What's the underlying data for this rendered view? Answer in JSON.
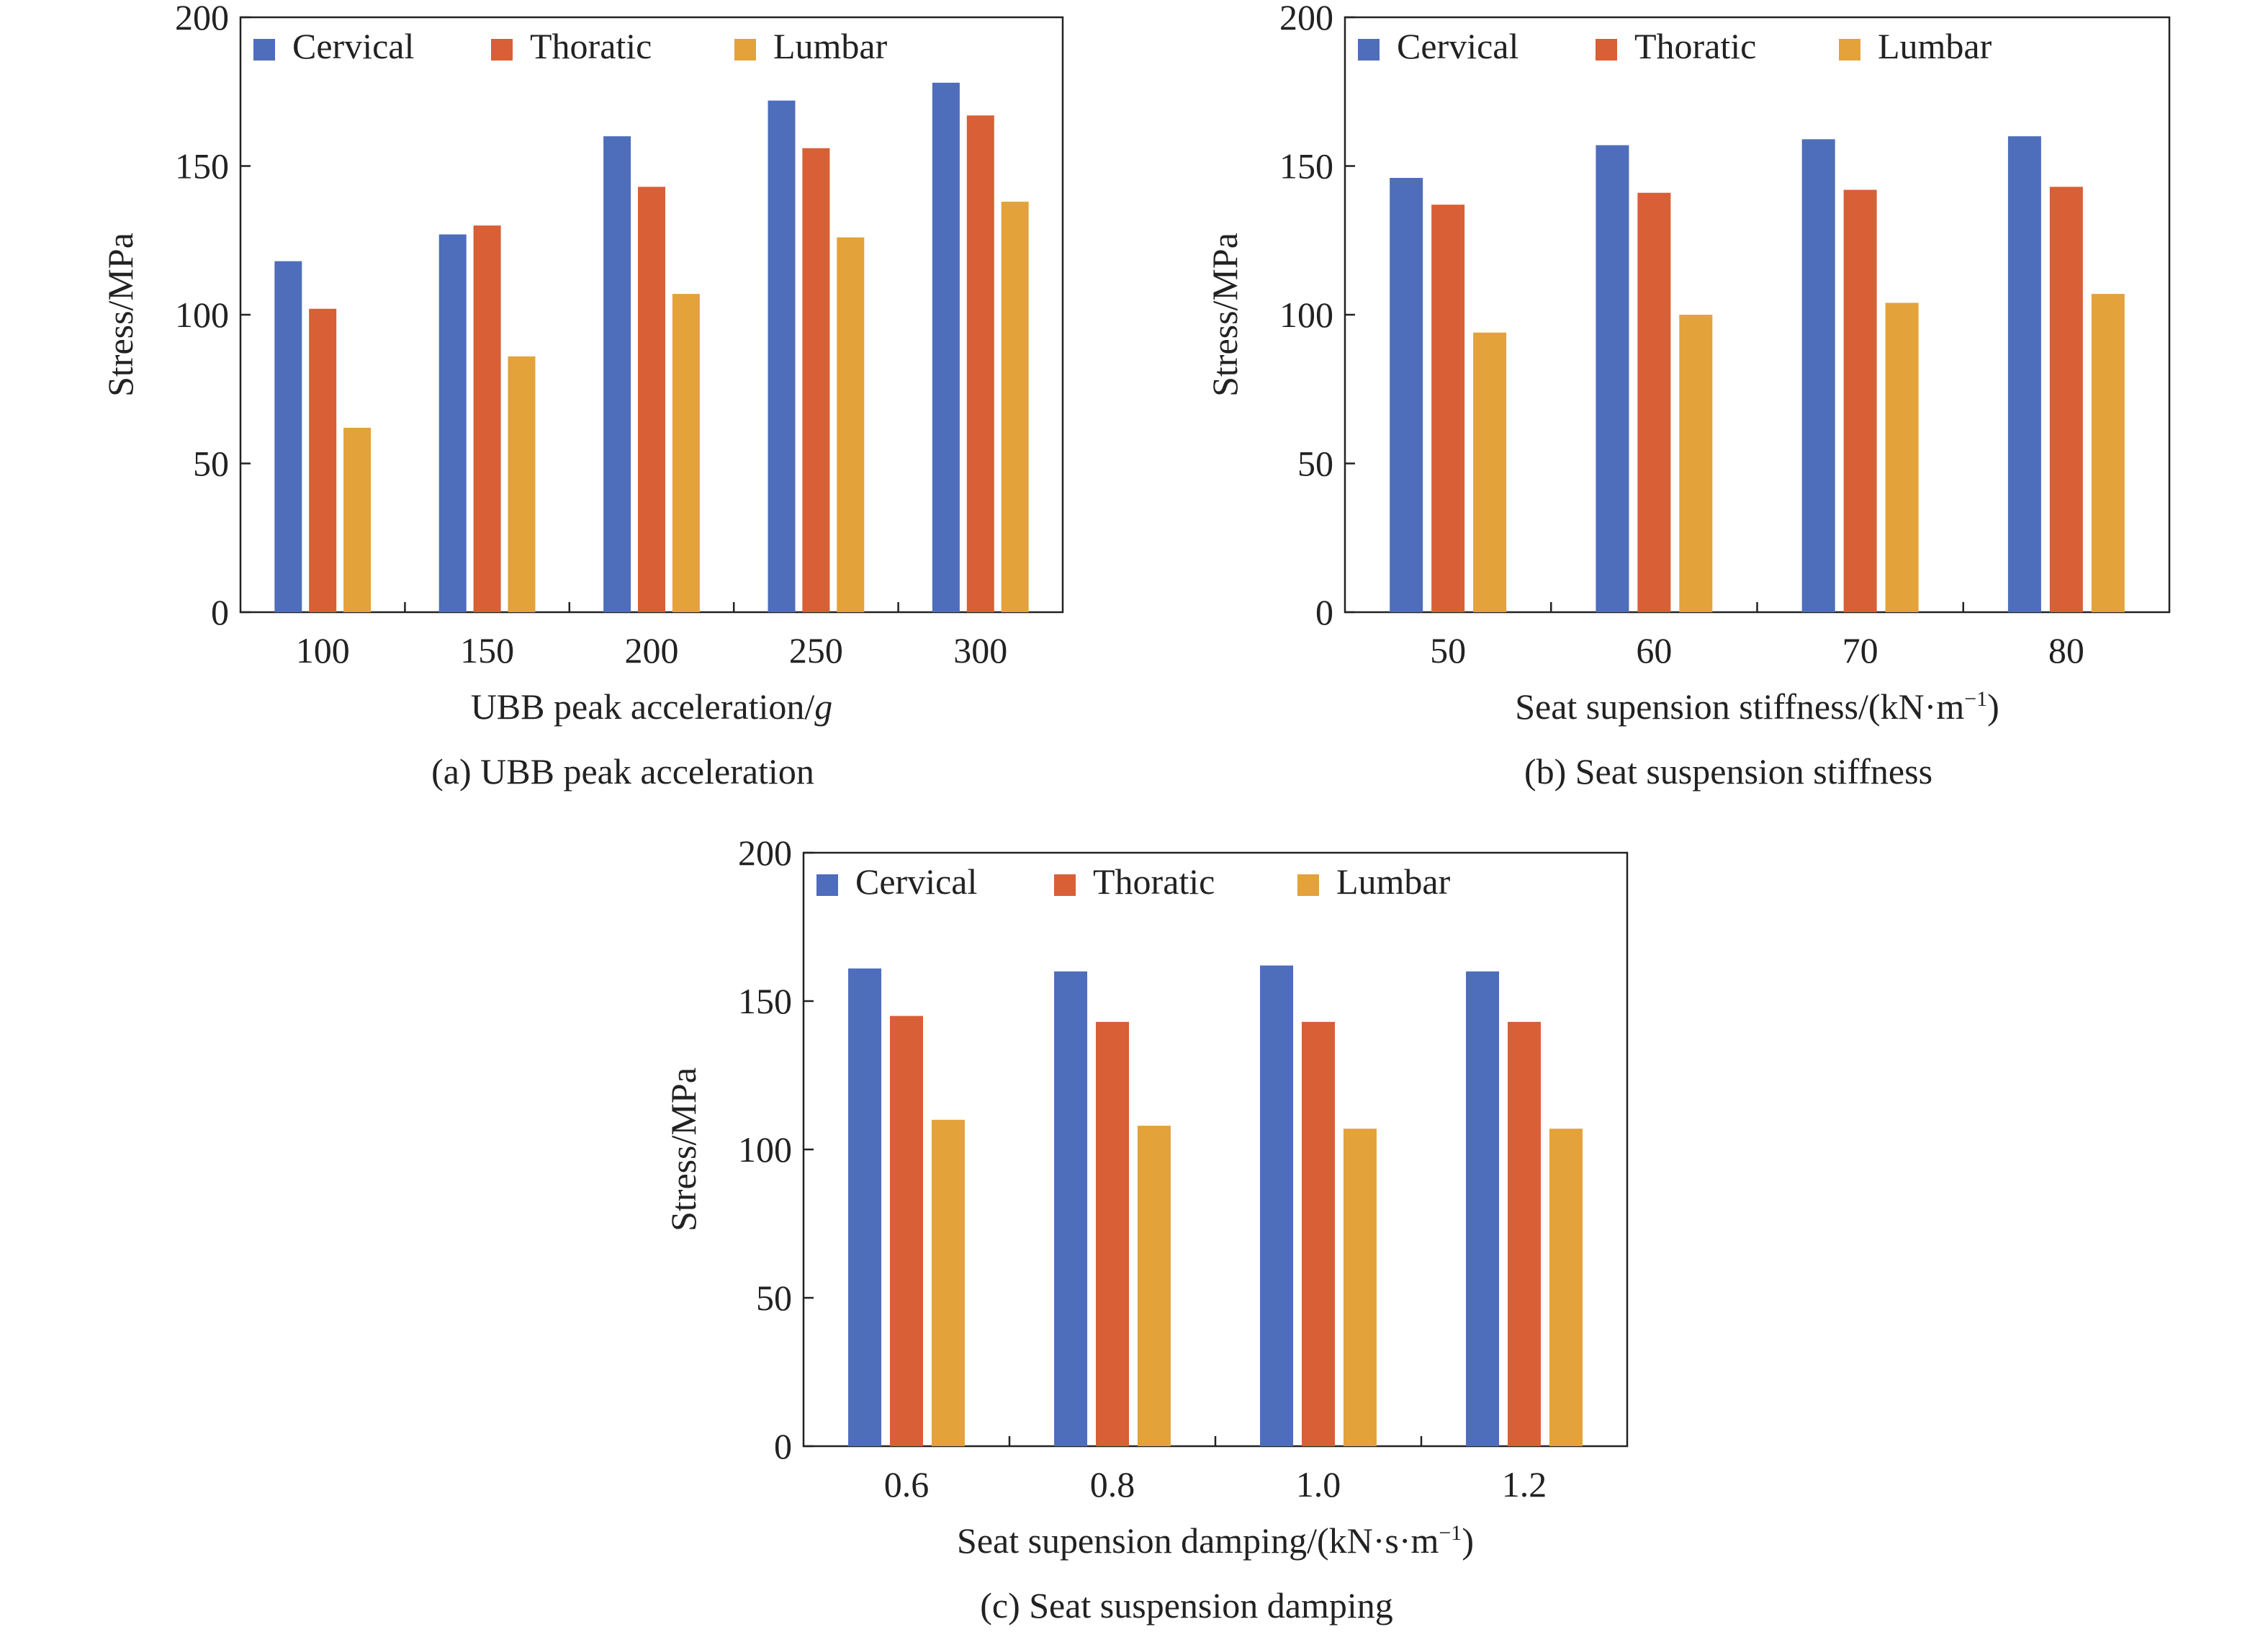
{
  "colors": {
    "Cervical": "#4e6dbb",
    "Thoratic": "#d85f36",
    "Lumbar": "#e3a23a",
    "axis": "#222222",
    "background": "#ffffff"
  },
  "chart_data": [
    {
      "type": "bar",
      "caption": "(a) UBB peak acceleration",
      "categories": [
        "100",
        "150",
        "200",
        "250",
        "300"
      ],
      "series": [
        {
          "name": "Cervical",
          "values": [
            118,
            127,
            160,
            172,
            178
          ]
        },
        {
          "name": "Thoratic",
          "values": [
            102,
            130,
            143,
            156,
            167
          ]
        },
        {
          "name": "Lumbar",
          "values": [
            62,
            86,
            107,
            126,
            138
          ]
        }
      ],
      "xlabel": "UBB peak acceleration/",
      "xlabel_italic": "g",
      "ylabel": "Stress/MPa",
      "ylim": [
        0,
        200
      ],
      "yticks": [
        0,
        50,
        100,
        150,
        200
      ],
      "legend": "top",
      "grid": false
    },
    {
      "type": "bar",
      "caption": "(b) Seat suspension stiffness",
      "categories": [
        "50",
        "60",
        "70",
        "80"
      ],
      "series": [
        {
          "name": "Cervical",
          "values": [
            146,
            157,
            159,
            160
          ]
        },
        {
          "name": "Thoratic",
          "values": [
            137,
            141,
            142,
            143
          ]
        },
        {
          "name": "Lumbar",
          "values": [
            94,
            100,
            104,
            107
          ]
        }
      ],
      "xlabel": "Seat supension stiffness/(kN·m",
      "xlabel_sup": "−1",
      "xlabel_end": ")",
      "ylabel": "Stress/MPa",
      "ylim": [
        0,
        200
      ],
      "yticks": [
        0,
        50,
        100,
        150,
        200
      ],
      "legend": "top",
      "grid": false
    },
    {
      "type": "bar",
      "caption": "(c) Seat suspension damping",
      "categories": [
        "0.6",
        "0.8",
        "1.0",
        "1.2"
      ],
      "series": [
        {
          "name": "Cervical",
          "values": [
            161,
            160,
            162,
            160
          ]
        },
        {
          "name": "Thoratic",
          "values": [
            145,
            143,
            143,
            143
          ]
        },
        {
          "name": "Lumbar",
          "values": [
            110,
            108,
            107,
            107
          ]
        }
      ],
      "xlabel": "Seat supension damping/(kN·s·m",
      "xlabel_sup": "−1",
      "xlabel_end": ")",
      "ylabel": "Stress/MPa",
      "ylim": [
        0,
        200
      ],
      "yticks": [
        0,
        50,
        100,
        150,
        200
      ],
      "legend": "top",
      "grid": false
    }
  ]
}
